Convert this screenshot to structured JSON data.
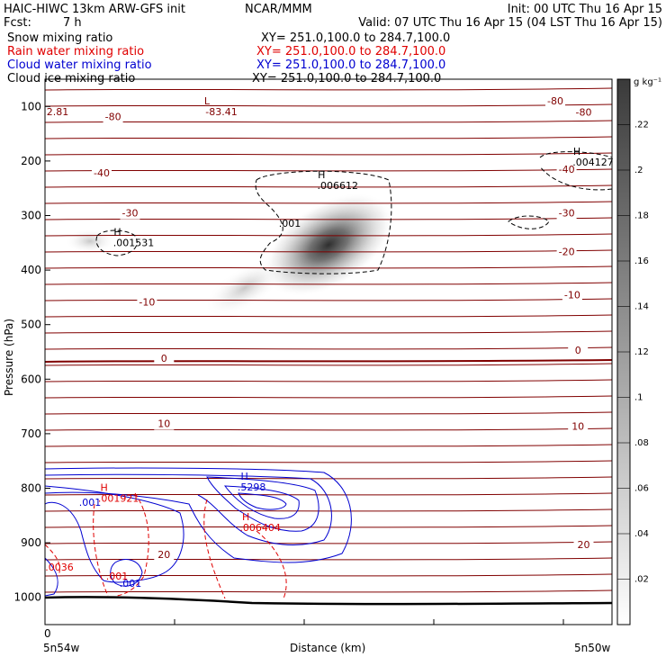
{
  "header": {
    "model": "HAIC-HIWC 13km ARW-GFS init",
    "org": "NCAR/MMM",
    "init": "Init: 00 UTC Thu 16 Apr 15",
    "fcst_label": "Fcst:",
    "fcst_value": "7 h",
    "valid": "Valid: 07 UTC Thu 16 Apr 15 (04 LST Thu 16 Apr 15)"
  },
  "legend": [
    {
      "name": "Snow mixing ratio",
      "xy": "XY= 251.0,100.0 to 284.7,100.0",
      "color": "#000000"
    },
    {
      "name": "Rain water mixing ratio",
      "xy": "XY= 251.0,100.0 to 284.7,100.0",
      "color": "#e00000"
    },
    {
      "name": "Cloud water mixing ratio",
      "xy": "XY= 251.0,100.0 to 284.7,100.0",
      "color": "#0000d0"
    },
    {
      "name": "Cloud ice mixing ratio",
      "xy": "XY= 251.0,100.0 to 284.7,100.0",
      "color": "#000000"
    }
  ],
  "colors": {
    "temperature": "#800000",
    "rain": "#e00000",
    "cloud_water": "#0000d0",
    "ice": "#000000",
    "frame": "#000000"
  },
  "chart_data": {
    "type": "heatmap",
    "xlabel": "Distance (km)",
    "ylabel": "Pressure (hPa)",
    "x_start_label": "0",
    "x_left_end": "5n54w",
    "x_right_end": "5n50w",
    "yticks": [
      "100",
      "200",
      "300",
      "400",
      "500",
      "600",
      "700",
      "800",
      "900",
      "1000"
    ],
    "y_range": [
      1050,
      50
    ],
    "colorbar": {
      "unit": "g kg⁻¹",
      "ticks": [
        ".02",
        ".04",
        ".06",
        ".08",
        ".1",
        ".12",
        ".14",
        ".16",
        ".18",
        ".2",
        ".22"
      ],
      "range": [
        0,
        0.24
      ]
    },
    "temperature_contours": {
      "labels": [
        {
          "text": "-80",
          "x": 0.12,
          "p": 125
        },
        {
          "text": "-80",
          "x": 0.95,
          "p": 117
        },
        {
          "text": "-80",
          "x": 0.9,
          "p": 96
        },
        {
          "text": "-40",
          "x": 0.1,
          "p": 228
        },
        {
          "text": "-40",
          "x": 0.92,
          "p": 222
        },
        {
          "text": "-30",
          "x": 0.15,
          "p": 302
        },
        {
          "text": "-30",
          "x": 0.92,
          "p": 302
        },
        {
          "text": "-20",
          "x": 0.92,
          "p": 373
        },
        {
          "text": "-10",
          "x": 0.18,
          "p": 465
        },
        {
          "text": "-10",
          "x": 0.93,
          "p": 452
        },
        {
          "text": "0",
          "x": 0.21,
          "p": 568
        },
        {
          "text": "0",
          "x": 0.94,
          "p": 553
        },
        {
          "text": "10",
          "x": 0.21,
          "p": 688
        },
        {
          "text": "10",
          "x": 0.94,
          "p": 693
        },
        {
          "text": "20",
          "x": 0.21,
          "p": 928
        },
        {
          "text": "20",
          "x": 0.95,
          "p": 910
        }
      ],
      "low_label": "L",
      "low_value": "-83.41",
      "corner_value": "2.81"
    },
    "ice_maxima": [
      {
        "label": "H",
        "value": ".006612",
        "x": 0.51,
        "p": 235
      },
      {
        "label": "H",
        "value": ".004127",
        "x": 0.99,
        "p": 192
      },
      {
        "label": "H",
        "value": ".001531",
        "x": 0.15,
        "p": 340
      }
    ],
    "ice_contour_label": ".001",
    "cloud_water_maxima": [
      {
        "label": "H",
        "value": ".5298",
        "x": 0.355,
        "p": 788
      }
    ],
    "cloud_water_labels": [
      ".001",
      ".001"
    ],
    "rain_maxima": [
      {
        "label": "H",
        "value": ".001921",
        "x": 0.12,
        "p": 808
      },
      {
        "label": "H",
        "value": ".006404",
        "x": 0.37,
        "p": 862
      }
    ],
    "rain_labels": [
      ".0036",
      ".001"
    ],
    "snow_field": {
      "peak_value": 0.22,
      "center_x": 0.57,
      "center_p": 360
    }
  }
}
